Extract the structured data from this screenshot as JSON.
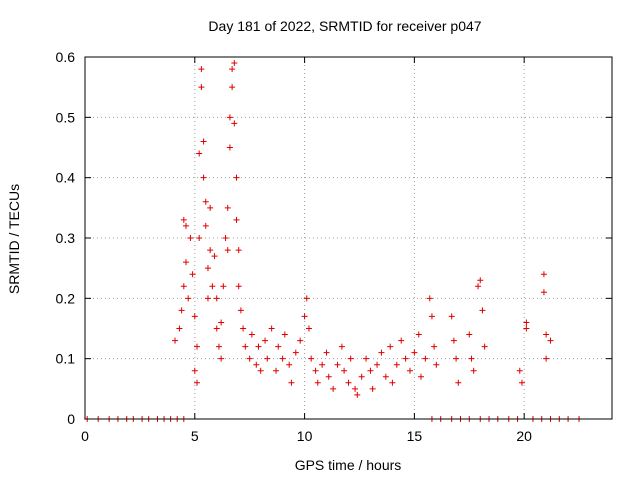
{
  "chart_data": {
    "type": "scatter",
    "title": "Day 181 of 2022, SRMTID for receiver p047",
    "xlabel": "GPS time / hours",
    "ylabel": "SRMTID / TECUs",
    "xlim": [
      0,
      24
    ],
    "ylim": [
      0,
      0.6
    ],
    "x_ticks": [
      0,
      5,
      10,
      15,
      20
    ],
    "x_tick_labels": [
      "0",
      "5",
      "10",
      "15",
      "20"
    ],
    "y_ticks": [
      0,
      0.1,
      0.2,
      0.3,
      0.4,
      0.5,
      0.6
    ],
    "y_tick_labels": [
      "0",
      "0.1",
      "0.2",
      "0.3",
      "0.4",
      "0.5",
      "0.6"
    ],
    "grid": true,
    "marker": "plus",
    "color": "#e00000",
    "series": [
      {
        "name": "SRMTID",
        "points": [
          [
            0.1,
            0
          ],
          [
            0.6,
            0
          ],
          [
            1.1,
            0
          ],
          [
            1.5,
            0
          ],
          [
            1.9,
            0
          ],
          [
            2.2,
            0
          ],
          [
            2.6,
            0
          ],
          [
            2.9,
            0
          ],
          [
            3.3,
            0
          ],
          [
            3.6,
            0
          ],
          [
            3.9,
            0
          ],
          [
            4.2,
            0
          ],
          [
            4.5,
            0
          ],
          [
            4.1,
            0.13
          ],
          [
            4.3,
            0.15
          ],
          [
            4.4,
            0.18
          ],
          [
            4.5,
            0.22
          ],
          [
            4.5,
            0.33
          ],
          [
            4.6,
            0.32
          ],
          [
            4.6,
            0.26
          ],
          [
            4.7,
            0.2
          ],
          [
            4.8,
            0.3
          ],
          [
            4.9,
            0.24
          ],
          [
            5.0,
            0.17
          ],
          [
            5.0,
            0.08
          ],
          [
            5.1,
            0.06
          ],
          [
            5.1,
            0.12
          ],
          [
            5.2,
            0.3
          ],
          [
            5.2,
            0.44
          ],
          [
            5.3,
            0.58
          ],
          [
            5.3,
            0.55
          ],
          [
            5.4,
            0.46
          ],
          [
            5.4,
            0.4
          ],
          [
            5.5,
            0.36
          ],
          [
            5.5,
            0.32
          ],
          [
            5.6,
            0.25
          ],
          [
            5.6,
            0.2
          ],
          [
            5.7,
            0.28
          ],
          [
            5.7,
            0.35
          ],
          [
            5.8,
            0.22
          ],
          [
            5.9,
            0.27
          ],
          [
            6.0,
            0.15
          ],
          [
            6.0,
            0.2
          ],
          [
            6.1,
            0.12
          ],
          [
            6.2,
            0.1
          ],
          [
            6.2,
            0.16
          ],
          [
            6.3,
            0.22
          ],
          [
            6.4,
            0.3
          ],
          [
            6.5,
            0.28
          ],
          [
            6.5,
            0.35
          ],
          [
            6.6,
            0.45
          ],
          [
            6.6,
            0.5
          ],
          [
            6.7,
            0.55
          ],
          [
            6.7,
            0.58
          ],
          [
            6.8,
            0.59
          ],
          [
            6.8,
            0.49
          ],
          [
            6.9,
            0.4
          ],
          [
            6.9,
            0.33
          ],
          [
            7.0,
            0.28
          ],
          [
            7.0,
            0.22
          ],
          [
            7.1,
            0.18
          ],
          [
            7.2,
            0.15
          ],
          [
            7.3,
            0.12
          ],
          [
            7.5,
            0.1
          ],
          [
            7.6,
            0.14
          ],
          [
            7.8,
            0.09
          ],
          [
            7.9,
            0.12
          ],
          [
            8.0,
            0.08
          ],
          [
            8.2,
            0.13
          ],
          [
            8.3,
            0.1
          ],
          [
            8.5,
            0.15
          ],
          [
            8.7,
            0.08
          ],
          [
            8.8,
            0.12
          ],
          [
            9.0,
            0.1
          ],
          [
            9.1,
            0.14
          ],
          [
            9.3,
            0.09
          ],
          [
            9.4,
            0.06
          ],
          [
            9.6,
            0.11
          ],
          [
            9.8,
            0.13
          ],
          [
            10.0,
            0.17
          ],
          [
            10.1,
            0.2
          ],
          [
            10.2,
            0.15
          ],
          [
            10.3,
            0.1
          ],
          [
            10.5,
            0.08
          ],
          [
            10.6,
            0.06
          ],
          [
            10.8,
            0.09
          ],
          [
            11.0,
            0.11
          ],
          [
            11.1,
            0.07
          ],
          [
            11.3,
            0.05
          ],
          [
            11.5,
            0.09
          ],
          [
            11.7,
            0.12
          ],
          [
            11.8,
            0.08
          ],
          [
            12.0,
            0.06
          ],
          [
            12.1,
            0.1
          ],
          [
            12.3,
            0.05
          ],
          [
            12.4,
            0.04
          ],
          [
            12.6,
            0.07
          ],
          [
            12.8,
            0.1
          ],
          [
            13.0,
            0.08
          ],
          [
            13.1,
            0.05
          ],
          [
            13.3,
            0.09
          ],
          [
            13.5,
            0.11
          ],
          [
            13.7,
            0.07
          ],
          [
            13.9,
            0.12
          ],
          [
            14.0,
            0.06
          ],
          [
            14.2,
            0.09
          ],
          [
            14.4,
            0.13
          ],
          [
            14.6,
            0.1
          ],
          [
            14.8,
            0.08
          ],
          [
            15.0,
            0.11
          ],
          [
            15.2,
            0.14
          ],
          [
            15.3,
            0.07
          ],
          [
            15.5,
            0.1
          ],
          [
            15.7,
            0.2
          ],
          [
            15.8,
            0.17
          ],
          [
            15.9,
            0.12
          ],
          [
            16.0,
            0.09
          ],
          [
            16.7,
            0.17
          ],
          [
            16.8,
            0.13
          ],
          [
            16.9,
            0.1
          ],
          [
            17.0,
            0.06
          ],
          [
            17.5,
            0.14
          ],
          [
            17.6,
            0.1
          ],
          [
            17.7,
            0.08
          ],
          [
            17.9,
            0.22
          ],
          [
            18.0,
            0.23
          ],
          [
            18.1,
            0.18
          ],
          [
            18.2,
            0.12
          ],
          [
            19.8,
            0.08
          ],
          [
            19.9,
            0.06
          ],
          [
            20.1,
            0.16
          ],
          [
            20.1,
            0.15
          ],
          [
            20.9,
            0.24
          ],
          [
            20.9,
            0.21
          ],
          [
            21.0,
            0.14
          ],
          [
            21.0,
            0.1
          ],
          [
            21.2,
            0.13
          ],
          [
            15.8,
            0
          ],
          [
            16.2,
            0
          ],
          [
            16.7,
            0
          ],
          [
            17.1,
            0
          ],
          [
            17.5,
            0
          ],
          [
            18.0,
            0
          ],
          [
            18.4,
            0
          ],
          [
            18.8,
            0
          ],
          [
            19.3,
            0
          ],
          [
            19.7,
            0
          ],
          [
            20.4,
            0
          ],
          [
            20.8,
            0
          ],
          [
            21.2,
            0
          ],
          [
            21.6,
            0
          ],
          [
            22.0,
            0
          ],
          [
            22.5,
            0
          ]
        ]
      }
    ]
  }
}
